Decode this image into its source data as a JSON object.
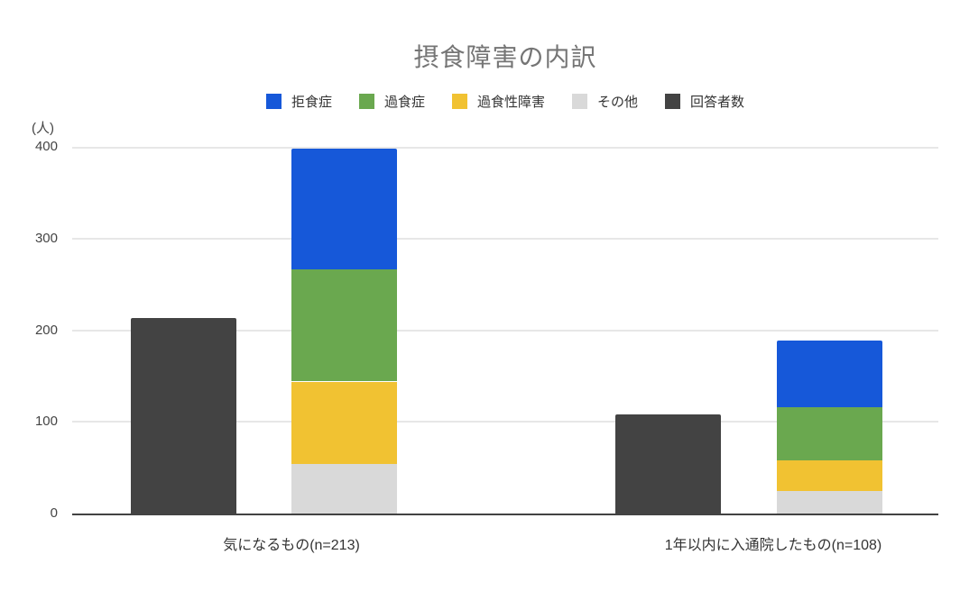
{
  "chart_data": {
    "type": "bar",
    "subtype": "stacked-column-with-separate-total-column",
    "title": "摂食障害の内訳",
    "xlabel": "",
    "ylabel": "(人)",
    "ylim": [
      0,
      400
    ],
    "yticks": [
      400,
      300,
      200,
      100,
      0
    ],
    "grid": true,
    "legend_position": "top",
    "categories": [
      "気になるもの(n=213)",
      "1年以内に入通院したもの(n=108)"
    ],
    "series": [
      {
        "key": "anorexia",
        "name": "拒食症",
        "color": "#1658d9",
        "stack": "breakdown",
        "values": [
          132,
          73
        ]
      },
      {
        "key": "bulimia",
        "name": "過食症",
        "color": "#6aa84f",
        "stack": "breakdown",
        "values": [
          122,
          58
        ]
      },
      {
        "key": "binge-eating",
        "name": "過食性障害",
        "color": "#f1c232",
        "stack": "breakdown",
        "values": [
          90,
          33
        ]
      },
      {
        "key": "other",
        "name": "その他",
        "color": "#d9d9d9",
        "stack": "breakdown",
        "values": [
          54,
          25
        ]
      },
      {
        "key": "respondents",
        "name": "回答者数",
        "color": "#434343",
        "stack": "respondents",
        "values": [
          213,
          108
        ]
      }
    ],
    "colors": {
      "background": "#ffffff",
      "title_text": "#757575",
      "axis_line": "#424242",
      "gridline": "#e7e7e7",
      "tick_text": "#444444",
      "category_text": "#333333"
    }
  }
}
